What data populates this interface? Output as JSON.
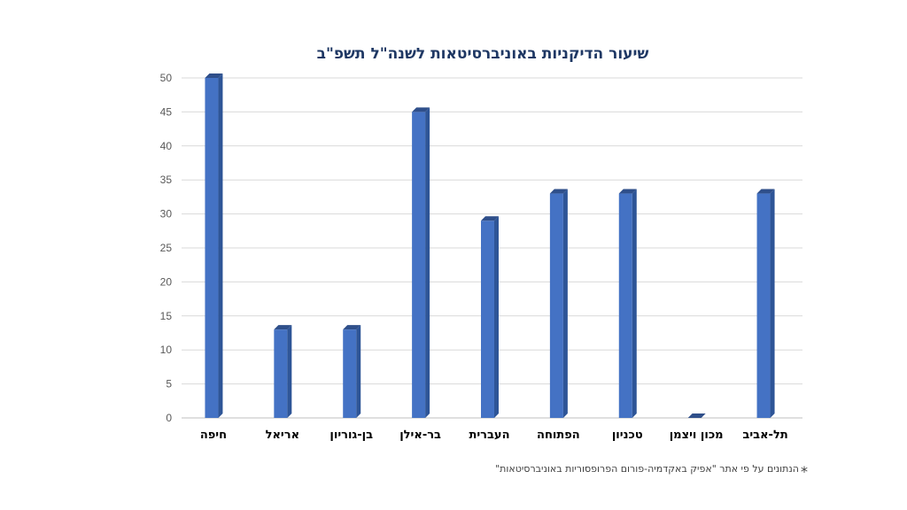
{
  "chart_data": {
    "type": "bar",
    "title": "שיעור הדיקניות באוניברסיטאות לשנה\"ל תשפ\"ב",
    "categories": [
      "חיפה",
      "אריאל",
      "בן-גוריון",
      "בר-אילן",
      "העברית",
      "הפתוחה",
      "טכניון",
      "מכון ויצמן",
      "תל-אביב"
    ],
    "values": [
      50,
      13,
      13,
      45,
      29,
      33,
      33,
      0,
      33
    ],
    "ylim": [
      0,
      50
    ],
    "yticks": [
      0,
      5,
      10,
      15,
      20,
      25,
      30,
      35,
      40,
      45,
      50
    ],
    "grid": true,
    "legend": "none",
    "bar_color": "#4472c4",
    "bar_side_color": "#2e5597",
    "bar_top_color": "#2f4f8a"
  },
  "footnote": {
    "marker": "*",
    "text": "הנתונים על פי אתר \"אפיק באקדמיה-פורום הפרופסוריות באוניברסיטאות\""
  }
}
